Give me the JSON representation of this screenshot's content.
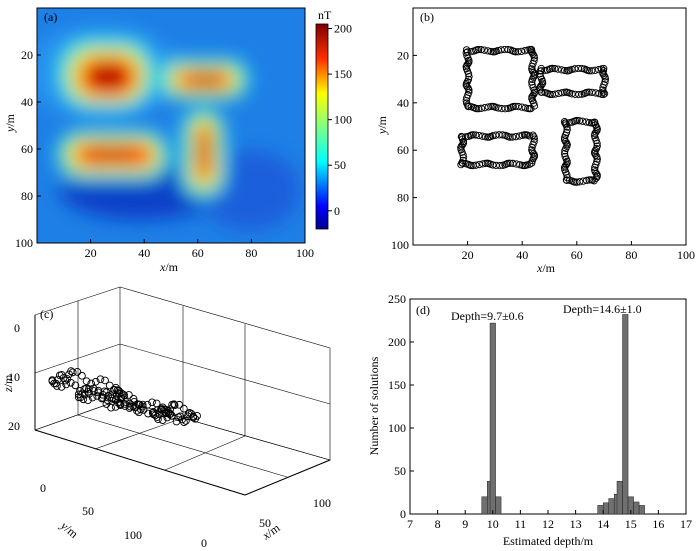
{
  "chart_data": [
    {
      "panel_label": "(a)",
      "type": "heatmap",
      "xlabel_var": "x",
      "xlabel_unit": "/m",
      "ylabel_var": "y",
      "ylabel_unit": "/m",
      "xlim": [
        0,
        100
      ],
      "ylim": [
        0,
        100
      ],
      "xticks": [
        20,
        40,
        60,
        80,
        100
      ],
      "yticks": [
        20,
        40,
        60,
        80,
        100
      ],
      "colorbar_title": "nT",
      "colorbar_range": [
        -20,
        205
      ],
      "colorbar_ticks": [
        0,
        50,
        100,
        150,
        200
      ],
      "anomalies": [
        {
          "x": [
            20,
            45
          ],
          "y": [
            20,
            40
          ],
          "peak": 200
        },
        {
          "x": [
            52,
            72
          ],
          "y": [
            25,
            36
          ],
          "peak": 200
        },
        {
          "x": [
            18,
            45
          ],
          "y": [
            55,
            65
          ],
          "peak": 200
        },
        {
          "x": [
            57,
            67
          ],
          "y": [
            48,
            73
          ],
          "peak": 200
        }
      ]
    },
    {
      "panel_label": "(b)",
      "type": "scatter",
      "xlabel_var": "x",
      "xlabel_unit": "/m",
      "ylabel_var": "y",
      "ylabel_unit": "/m",
      "xlim": [
        0,
        100
      ],
      "ylim": [
        0,
        100
      ],
      "xticks": [
        20,
        40,
        60,
        80,
        100
      ],
      "yticks": [
        20,
        40,
        60,
        80,
        100
      ],
      "rectangles": [
        {
          "x": [
            20,
            44
          ],
          "y": [
            18,
            42
          ]
        },
        {
          "x": [
            47,
            70
          ],
          "y": [
            26,
            36
          ]
        },
        {
          "x": [
            18,
            44
          ],
          "y": [
            54,
            66
          ]
        },
        {
          "x": [
            56,
            67
          ],
          "y": [
            48,
            73
          ]
        }
      ]
    },
    {
      "panel_label": "(c)",
      "type": "scatter",
      "dimension": "3d",
      "xlabel_var": "x",
      "xlabel_unit": "/m",
      "ylabel_var": "y",
      "ylabel_unit": "/m",
      "zlabel_var": "z",
      "zlabel_unit": "/m",
      "xticks": [
        0,
        50,
        100
      ],
      "yticks": [
        0,
        50,
        100
      ],
      "zticks": [
        0,
        10,
        20
      ]
    },
    {
      "panel_label": "(d)",
      "type": "bar",
      "xlabel": "Estimated depth/m",
      "ylabel": "Number of solutions",
      "xlim": [
        7,
        17
      ],
      "ylim": [
        0,
        250
      ],
      "xticks": [
        7,
        8,
        9,
        10,
        11,
        12,
        13,
        14,
        15,
        16,
        17
      ],
      "yticks": [
        0,
        50,
        100,
        150,
        200,
        250
      ],
      "bin_width": 0.2,
      "bins": [
        {
          "x": 9.7,
          "count": 20
        },
        {
          "x": 9.9,
          "count": 38
        },
        {
          "x": 10.0,
          "count": 222
        },
        {
          "x": 10.2,
          "count": 20
        },
        {
          "x": 13.9,
          "count": 10
        },
        {
          "x": 14.1,
          "count": 13
        },
        {
          "x": 14.3,
          "count": 18
        },
        {
          "x": 14.5,
          "count": 23
        },
        {
          "x": 14.6,
          "count": 38
        },
        {
          "x": 14.8,
          "count": 232
        },
        {
          "x": 15.0,
          "count": 20
        },
        {
          "x": 15.2,
          "count": 14
        },
        {
          "x": 15.4,
          "count": 10
        }
      ],
      "annotations": [
        "Depth=9.7±0.6",
        "Depth=14.6±1.0"
      ]
    }
  ],
  "colors": {
    "colormap": [
      "#00008f",
      "#0000ff",
      "#0080ff",
      "#00ffff",
      "#80ff80",
      "#ffff00",
      "#ff8000",
      "#ff0000",
      "#800000"
    ],
    "bars": "#6f6f6f",
    "markers": "#000000"
  }
}
